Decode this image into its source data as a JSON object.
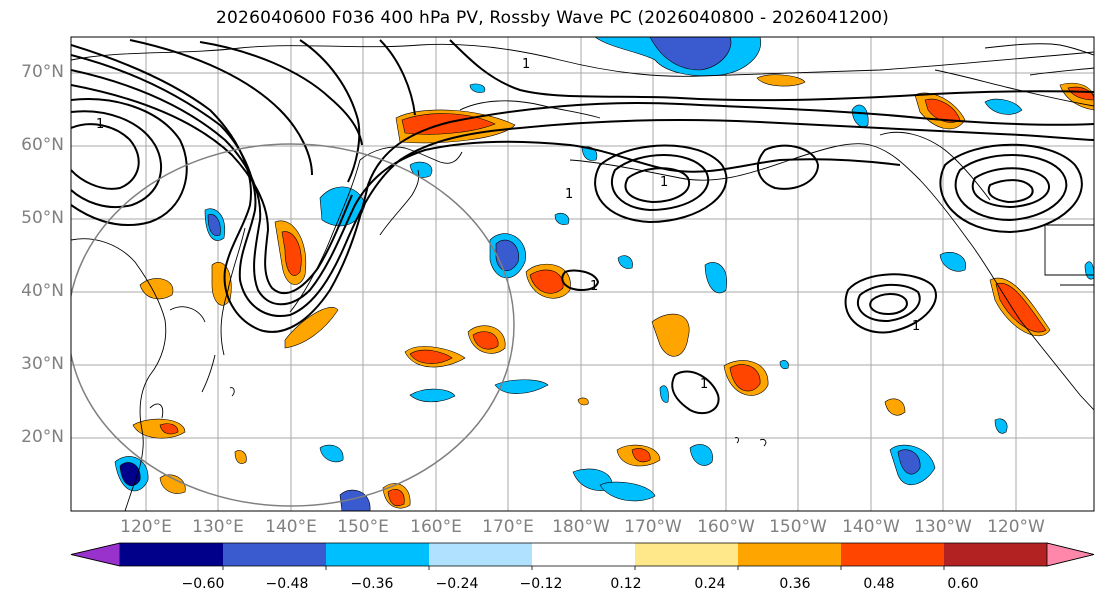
{
  "title": "2026040600 F036 400 hPa PV, Rossby Wave PC (2026040800 - 2026041200)",
  "lat_labels": [
    "70°N",
    "60°N",
    "50°N",
    "40°N",
    "30°N",
    "20°N"
  ],
  "lon_labels": [
    "120°E",
    "130°E",
    "140°E",
    "150°E",
    "160°E",
    "170°E",
    "180°W",
    "170°W",
    "160°W",
    "150°W",
    "140°W",
    "130°W",
    "120°W"
  ],
  "contour_label": "1",
  "colorbar": {
    "ticks": [
      "−0.60",
      "−0.48",
      "−0.36",
      "−0.24",
      "−0.12",
      "0.12",
      "0.24",
      "0.36",
      "0.48",
      "0.60"
    ],
    "colors": [
      "#9932cc",
      "#00008b",
      "#3a5ad0",
      "#00bfff",
      "#b0e2ff",
      "#ffffff",
      "#ffe88a",
      "#ffa500",
      "#ff4500",
      "#b22222",
      "#ff88aa"
    ]
  },
  "colors": {
    "grid": "#a9a9a9",
    "circle": "#808080",
    "axis_label": "#808080"
  }
}
